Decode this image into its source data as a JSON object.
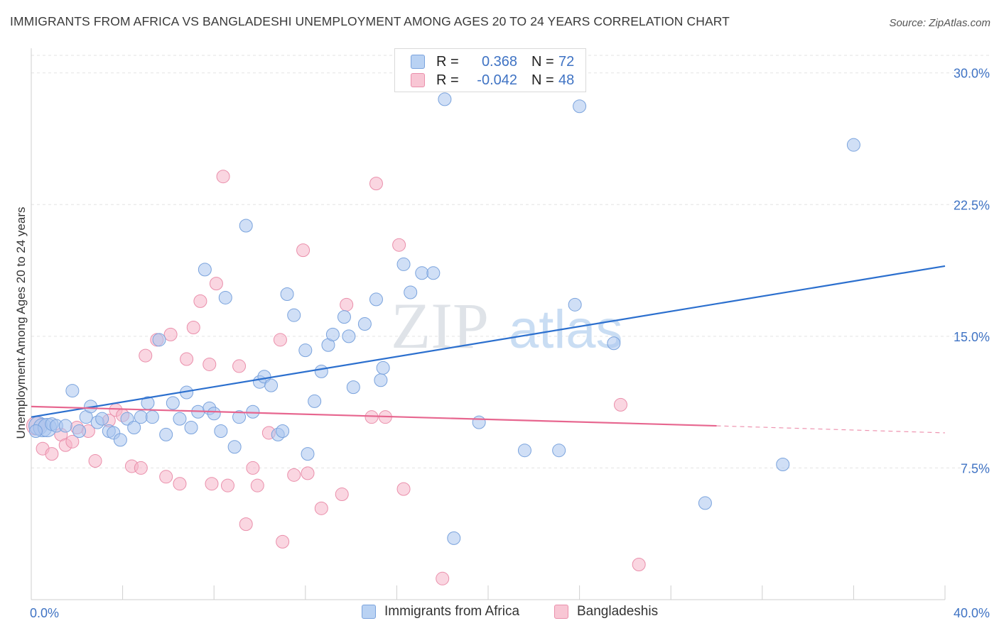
{
  "title": "IMMIGRANTS FROM AFRICA VS BANGLADESHI UNEMPLOYMENT AMONG AGES 20 TO 24 YEARS CORRELATION CHART",
  "source": "Source: ZipAtlas.com",
  "watermark": {
    "zip": "ZIP",
    "atlas": "atlas"
  },
  "legend": {
    "rows": [
      {
        "r_label": "R =",
        "r_value": "0.368",
        "n_label": "N =",
        "n_value": "72"
      },
      {
        "r_label": "R =",
        "r_value": "-0.042",
        "n_label": "N =",
        "n_value": "48"
      }
    ]
  },
  "chart_data": {
    "type": "scatter",
    "title": "IMMIGRANTS FROM AFRICA VS BANGLADESHI UNEMPLOYMENT AMONG AGES 20 TO 24 YEARS CORRELATION CHART",
    "xlabel": "",
    "ylabel": "Unemployment Among Ages 20 to 24 years",
    "xlim": [
      0,
      40
    ],
    "ylim": [
      0,
      31
    ],
    "x_tick_labels": [
      "0.0%",
      "40.0%"
    ],
    "y_ticks": [
      7.5,
      15.0,
      22.5,
      30.0
    ],
    "y_tick_labels": [
      "7.5%",
      "15.0%",
      "22.5%",
      "30.0%"
    ],
    "grid": "horizontal dashed",
    "legend_position": "top-center",
    "series": [
      {
        "name": "Immigrants from Africa",
        "color": "#a9c5ef",
        "stroke": "#7aa3dd",
        "trend": {
          "x0": 0,
          "y0": 10.4,
          "x1": 40,
          "y1": 19.0,
          "color": "#2b6fce"
        },
        "points": [
          [
            0.3,
            9.9
          ],
          [
            0.5,
            9.8
          ],
          [
            0.7,
            9.8
          ],
          [
            0.9,
            10.0
          ],
          [
            1.1,
            9.9
          ],
          [
            1.5,
            9.9
          ],
          [
            1.8,
            11.9
          ],
          [
            2.1,
            9.6
          ],
          [
            2.4,
            10.4
          ],
          [
            2.6,
            11.0
          ],
          [
            2.9,
            10.1
          ],
          [
            3.1,
            10.3
          ],
          [
            3.4,
            9.6
          ],
          [
            3.6,
            9.5
          ],
          [
            3.9,
            9.1
          ],
          [
            4.2,
            10.3
          ],
          [
            4.5,
            9.8
          ],
          [
            4.8,
            10.4
          ],
          [
            5.1,
            11.2
          ],
          [
            5.3,
            10.4
          ],
          [
            5.6,
            14.8
          ],
          [
            5.9,
            9.4
          ],
          [
            6.2,
            11.2
          ],
          [
            6.5,
            10.3
          ],
          [
            6.8,
            11.8
          ],
          [
            7.0,
            9.8
          ],
          [
            7.3,
            10.7
          ],
          [
            7.6,
            18.8
          ],
          [
            7.8,
            10.9
          ],
          [
            8.0,
            10.6
          ],
          [
            8.3,
            9.6
          ],
          [
            8.5,
            17.2
          ],
          [
            8.9,
            8.7
          ],
          [
            9.1,
            10.4
          ],
          [
            9.4,
            21.3
          ],
          [
            9.7,
            10.7
          ],
          [
            10.0,
            12.4
          ],
          [
            10.2,
            12.7
          ],
          [
            10.5,
            12.2
          ],
          [
            10.8,
            9.4
          ],
          [
            11.0,
            9.6
          ],
          [
            11.2,
            17.4
          ],
          [
            11.5,
            16.2
          ],
          [
            12.0,
            14.2
          ],
          [
            12.1,
            8.3
          ],
          [
            12.4,
            11.3
          ],
          [
            12.7,
            13.0
          ],
          [
            13.0,
            14.5
          ],
          [
            13.2,
            15.1
          ],
          [
            13.7,
            16.1
          ],
          [
            13.9,
            15.0
          ],
          [
            14.1,
            12.1
          ],
          [
            14.6,
            15.7
          ],
          [
            15.1,
            17.1
          ],
          [
            15.3,
            12.5
          ],
          [
            15.4,
            13.2
          ],
          [
            16.3,
            19.1
          ],
          [
            16.6,
            17.5
          ],
          [
            17.1,
            18.6
          ],
          [
            17.6,
            18.6
          ],
          [
            18.1,
            28.5
          ],
          [
            18.5,
            3.5
          ],
          [
            19.6,
            10.1
          ],
          [
            21.6,
            8.5
          ],
          [
            23.1,
            8.5
          ],
          [
            23.8,
            16.8
          ],
          [
            24.0,
            28.1
          ],
          [
            25.5,
            14.6
          ],
          [
            29.5,
            5.5
          ],
          [
            32.9,
            7.7
          ],
          [
            36.0,
            25.9
          ],
          [
            0.2,
            9.6
          ]
        ]
      },
      {
        "name": "Bangladeshis",
        "color": "#f5b5c8",
        "stroke": "#ea8fab",
        "trend": {
          "x0": 0,
          "y0": 11.0,
          "x1": 30,
          "y1": 9.9,
          "dash_x1": 40,
          "dash_y1": 9.5,
          "color": "#e7668f"
        },
        "points": [
          [
            0.2,
            9.9
          ],
          [
            0.5,
            8.6
          ],
          [
            0.9,
            8.3
          ],
          [
            1.3,
            9.4
          ],
          [
            1.5,
            8.8
          ],
          [
            1.8,
            9.0
          ],
          [
            2.0,
            9.8
          ],
          [
            2.5,
            9.6
          ],
          [
            2.8,
            7.9
          ],
          [
            3.4,
            10.2
          ],
          [
            3.7,
            10.8
          ],
          [
            4.0,
            10.5
          ],
          [
            4.4,
            7.6
          ],
          [
            4.8,
            7.5
          ],
          [
            5.0,
            13.9
          ],
          [
            5.5,
            14.8
          ],
          [
            5.9,
            7.0
          ],
          [
            6.1,
            15.1
          ],
          [
            6.5,
            6.6
          ],
          [
            6.8,
            13.7
          ],
          [
            7.1,
            15.5
          ],
          [
            7.4,
            17.0
          ],
          [
            7.8,
            13.4
          ],
          [
            7.9,
            6.6
          ],
          [
            8.1,
            18.0
          ],
          [
            8.4,
            24.1
          ],
          [
            8.6,
            6.5
          ],
          [
            9.1,
            13.3
          ],
          [
            9.4,
            4.3
          ],
          [
            9.7,
            7.5
          ],
          [
            9.9,
            6.5
          ],
          [
            10.4,
            9.5
          ],
          [
            10.9,
            14.8
          ],
          [
            11.0,
            3.3
          ],
          [
            11.5,
            7.1
          ],
          [
            11.9,
            19.9
          ],
          [
            12.1,
            7.2
          ],
          [
            12.7,
            5.2
          ],
          [
            13.6,
            6.0
          ],
          [
            13.8,
            16.8
          ],
          [
            14.9,
            10.4
          ],
          [
            15.1,
            23.7
          ],
          [
            15.5,
            10.4
          ],
          [
            16.1,
            20.2
          ],
          [
            16.3,
            6.3
          ],
          [
            18.0,
            1.2
          ],
          [
            25.8,
            11.1
          ],
          [
            26.6,
            2.0
          ]
        ]
      }
    ]
  }
}
